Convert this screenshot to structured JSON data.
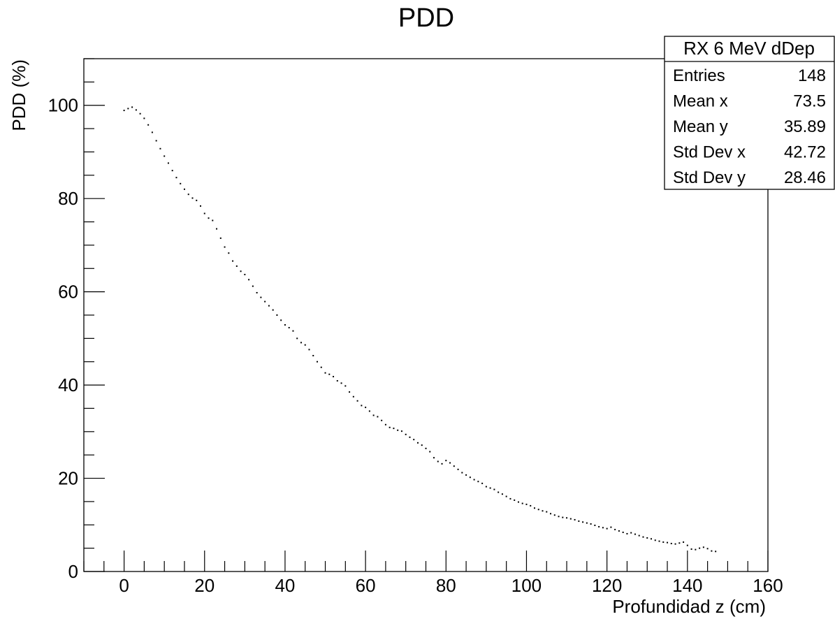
{
  "chart_data": {
    "type": "scatter",
    "title": "PDD",
    "xlabel": "Profundidad z (cm)",
    "ylabel": "PDD (%)",
    "xlim": [
      -10,
      160
    ],
    "ylim": [
      0,
      110
    ],
    "x_ticks": [
      0,
      20,
      40,
      60,
      80,
      100,
      120,
      140,
      160
    ],
    "y_ticks": [
      0,
      20,
      40,
      60,
      80,
      100
    ],
    "grid": false,
    "legend_position": "top-right",
    "series": [
      {
        "marker_color": "#000000",
        "points": [
          [
            0,
            98.9
          ],
          [
            1,
            99.3
          ],
          [
            2,
            99.6
          ],
          [
            3,
            99.0
          ],
          [
            4,
            98.2
          ],
          [
            5,
            97.2
          ],
          [
            6,
            95.8
          ],
          [
            7,
            94.2
          ],
          [
            8,
            92.4
          ],
          [
            9,
            90.7
          ],
          [
            10,
            89.1
          ],
          [
            11,
            87.6
          ],
          [
            12,
            86.0
          ],
          [
            13,
            84.5
          ],
          [
            14,
            83.2
          ],
          [
            15,
            82.0
          ],
          [
            16,
            80.9
          ],
          [
            17,
            80.1
          ],
          [
            18,
            79.6
          ],
          [
            19,
            78.4
          ],
          [
            20,
            76.8
          ],
          [
            21,
            75.8
          ],
          [
            22,
            75.3
          ],
          [
            23,
            73.5
          ],
          [
            24,
            71.5
          ],
          [
            25,
            69.6
          ],
          [
            26,
            68.3
          ],
          [
            27,
            66.6
          ],
          [
            28,
            65.5
          ],
          [
            29,
            64.4
          ],
          [
            30,
            63.7
          ],
          [
            31,
            62.6
          ],
          [
            32,
            61.2
          ],
          [
            33,
            59.8
          ],
          [
            34,
            58.8
          ],
          [
            35,
            57.9
          ],
          [
            36,
            57.0
          ],
          [
            37,
            56.1
          ],
          [
            38,
            55.0
          ],
          [
            39,
            53.9
          ],
          [
            40,
            52.9
          ],
          [
            41,
            52.3
          ],
          [
            42,
            51.6
          ],
          [
            43,
            50.0
          ],
          [
            44,
            49.1
          ],
          [
            45,
            48.6
          ],
          [
            46,
            47.6
          ],
          [
            47,
            46.3
          ],
          [
            48,
            45.0
          ],
          [
            49,
            43.8
          ],
          [
            50,
            42.6
          ],
          [
            51,
            42.3
          ],
          [
            52,
            41.8
          ],
          [
            53,
            40.9
          ],
          [
            54,
            40.4
          ],
          [
            55,
            39.8
          ],
          [
            56,
            38.5
          ],
          [
            57,
            37.5
          ],
          [
            58,
            36.6
          ],
          [
            59,
            35.6
          ],
          [
            60,
            35.2
          ],
          [
            61,
            34.4
          ],
          [
            62,
            33.5
          ],
          [
            63,
            33.2
          ],
          [
            64,
            32.4
          ],
          [
            65,
            31.5
          ],
          [
            66,
            30.9
          ],
          [
            67,
            30.7
          ],
          [
            68,
            30.3
          ],
          [
            69,
            30.1
          ],
          [
            70,
            29.4
          ],
          [
            71,
            28.8
          ],
          [
            72,
            28.3
          ],
          [
            73,
            27.6
          ],
          [
            74,
            27.1
          ],
          [
            75,
            26.4
          ],
          [
            76,
            25.7
          ],
          [
            77,
            24.4
          ],
          [
            78,
            23.6
          ],
          [
            79,
            23.1
          ],
          [
            80,
            23.8
          ],
          [
            81,
            23.3
          ],
          [
            82,
            22.6
          ],
          [
            83,
            21.9
          ],
          [
            84,
            21.2
          ],
          [
            85,
            20.7
          ],
          [
            86,
            20.2
          ],
          [
            87,
            19.7
          ],
          [
            88,
            19.3
          ],
          [
            89,
            18.9
          ],
          [
            90,
            18.2
          ],
          [
            91,
            17.9
          ],
          [
            92,
            17.6
          ],
          [
            93,
            17.0
          ],
          [
            94,
            16.6
          ],
          [
            95,
            16.1
          ],
          [
            96,
            15.6
          ],
          [
            97,
            15.3
          ],
          [
            98,
            14.9
          ],
          [
            99,
            14.6
          ],
          [
            100,
            14.4
          ],
          [
            101,
            14.1
          ],
          [
            102,
            13.6
          ],
          [
            103,
            13.3
          ],
          [
            104,
            13.0
          ],
          [
            105,
            12.8
          ],
          [
            106,
            12.4
          ],
          [
            107,
            12.1
          ],
          [
            108,
            11.8
          ],
          [
            109,
            11.6
          ],
          [
            110,
            11.5
          ],
          [
            111,
            11.3
          ],
          [
            112,
            11.1
          ],
          [
            113,
            10.8
          ],
          [
            114,
            10.6
          ],
          [
            115,
            10.4
          ],
          [
            116,
            10.2
          ],
          [
            117,
            9.9
          ],
          [
            118,
            9.6
          ],
          [
            119,
            9.4
          ],
          [
            120,
            9.2
          ],
          [
            121,
            9.5
          ],
          [
            122,
            9.0
          ],
          [
            123,
            8.7
          ],
          [
            124,
            8.4
          ],
          [
            125,
            8.1
          ],
          [
            126,
            8.3
          ],
          [
            127,
            8.0
          ],
          [
            128,
            7.7
          ],
          [
            129,
            7.4
          ],
          [
            130,
            7.2
          ],
          [
            131,
            7.0
          ],
          [
            132,
            6.7
          ],
          [
            133,
            6.5
          ],
          [
            134,
            6.3
          ],
          [
            135,
            6.2
          ],
          [
            136,
            6.0
          ],
          [
            137,
            5.9
          ],
          [
            138,
            6.1
          ],
          [
            139,
            6.3
          ],
          [
            140,
            5.6
          ],
          [
            141,
            4.8
          ],
          [
            142,
            4.7
          ],
          [
            143,
            5.0
          ],
          [
            144,
            5.2
          ],
          [
            145,
            4.9
          ],
          [
            146,
            4.4
          ],
          [
            147,
            4.3
          ]
        ]
      }
    ],
    "stats_box": {
      "title": "RX 6 MeV dDep",
      "rows": [
        {
          "label": "Entries",
          "value": "148"
        },
        {
          "label": "Mean x",
          "value": "73.5"
        },
        {
          "label": "Mean y",
          "value": "35.89"
        },
        {
          "label": "Std Dev x",
          "value": "42.72"
        },
        {
          "label": "Std Dev y",
          "value": "28.46"
        }
      ]
    }
  }
}
